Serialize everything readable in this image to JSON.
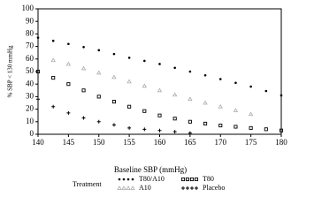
{
  "chart_data": {
    "type": "scatter",
    "x_label": "Baseline SBP (mmHg)",
    "y_label": "% SBP < 130 mmHg",
    "legend_title": "Treatment",
    "x": [
      140,
      142.5,
      145,
      147.5,
      150,
      152.5,
      155,
      157.5,
      160,
      162.5,
      165,
      167.5,
      170,
      172.5,
      175,
      177.5,
      180
    ],
    "series": [
      {
        "name": "T80/A10",
        "color": "#000000",
        "marker": "dot",
        "values": [
          77,
          74.5,
          72,
          69.5,
          67,
          64,
          61,
          58.5,
          56,
          53,
          50,
          47,
          44,
          41,
          38,
          34.5,
          31
        ]
      },
      {
        "name": "T80",
        "color": "#000000",
        "marker": "square",
        "values": [
          50,
          45,
          40,
          35,
          30,
          26,
          22,
          18.5,
          15,
          12.5,
          10,
          8.5,
          7,
          6,
          5,
          4,
          3
        ]
      },
      {
        "name": "A10",
        "color": "#aaaaaa",
        "marker": "triangle",
        "values": [
          null,
          59,
          56,
          52.5,
          49,
          45.5,
          42,
          38.5,
          35,
          31.5,
          28,
          25,
          22,
          19,
          16,
          null,
          null
        ]
      },
      {
        "name": "Placebo",
        "color": "#000000",
        "marker": "plus",
        "values": [
          28,
          22,
          17,
          13,
          10,
          7.5,
          5,
          4,
          3,
          2,
          1,
          null,
          null,
          null,
          null,
          null,
          null
        ]
      }
    ],
    "xlim": [
      140,
      180
    ],
    "xticks": [
      140,
      145,
      150,
      155,
      160,
      165,
      170,
      175,
      180
    ],
    "ylim": [
      0,
      100
    ],
    "yticks": [
      0,
      10,
      20,
      30,
      40,
      50,
      60,
      70,
      80,
      90,
      100
    ]
  }
}
